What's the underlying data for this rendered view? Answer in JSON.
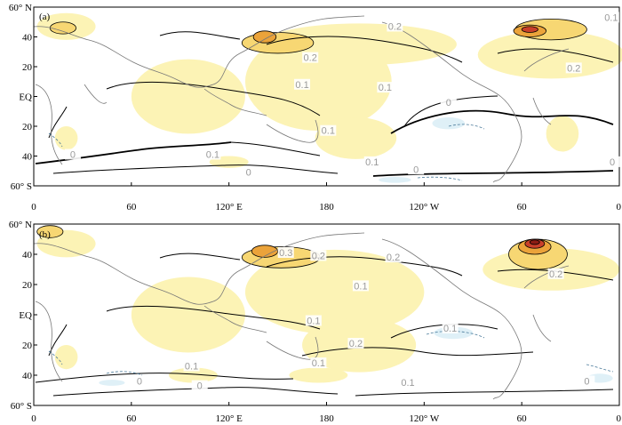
{
  "figure": {
    "colors": {
      "shade_light_blue": "#dff0f7",
      "shade_yellow_1": "#fcf3b5",
      "shade_yellow_2": "#f7d773",
      "shade_orange": "#eba33a",
      "shade_red": "#c9402a",
      "shade_dark_red": "#8c1c14",
      "contour_black": "#000000",
      "coastline_grey": "#777777",
      "label_grey": "#9a9a9a"
    },
    "x_ticks": [
      "0",
      "60",
      "120° E",
      "180",
      "120° W",
      "60",
      "0"
    ],
    "y_ticks": [
      "60° N",
      "40",
      "20",
      "EQ",
      "20",
      "40",
      "60° S"
    ],
    "panels": [
      {
        "id": "a",
        "label": "(a)",
        "contour_labels": [
          {
            "text": "0.2",
            "lon": 222,
            "lat": 46
          },
          {
            "text": "0.1",
            "lon": 355,
            "lat": 52
          },
          {
            "text": "0.2",
            "lon": 170,
            "lat": 25
          },
          {
            "text": "0.2",
            "lon": 332,
            "lat": 18
          },
          {
            "text": "0.1",
            "lon": 165,
            "lat": 7
          },
          {
            "text": "0.1",
            "lon": 216,
            "lat": 5
          },
          {
            "text": "0.1",
            "lon": 181,
            "lat": -24
          },
          {
            "text": "0.1",
            "lon": 110,
            "lat": -40
          },
          {
            "text": "0.1",
            "lon": 208,
            "lat": -45
          },
          {
            "text": "0",
            "lon": 235,
            "lat": -50
          },
          {
            "text": "0",
            "lon": 255,
            "lat": -5
          },
          {
            "text": "0",
            "lon": 356,
            "lat": -45
          },
          {
            "text": "0",
            "lon": 24,
            "lat": -40
          },
          {
            "text": "0",
            "lon": 132,
            "lat": -52
          }
        ],
        "shades": [
          {
            "level": "yellow_1",
            "lon": 95,
            "lat": 0,
            "rlon": 35,
            "rlat": 25
          },
          {
            "level": "yellow_1",
            "lon": 175,
            "lat": 10,
            "rlon": 45,
            "rlat": 33
          },
          {
            "level": "yellow_1",
            "lon": 200,
            "lat": 35,
            "rlon": 60,
            "rlat": 14
          },
          {
            "level": "yellow_1",
            "lon": 318,
            "lat": 28,
            "rlon": 45,
            "rlat": 16
          },
          {
            "level": "yellow_1",
            "lon": 198,
            "lat": -28,
            "rlon": 25,
            "rlat": 14
          },
          {
            "level": "yellow_1",
            "lon": 120,
            "lat": -44,
            "rlon": 12,
            "rlat": 4
          },
          {
            "level": "yellow_1",
            "lon": 20,
            "lat": 47,
            "rlon": 18,
            "rlat": 9
          },
          {
            "level": "yellow_1",
            "lon": 20,
            "lat": -28,
            "rlon": 7,
            "rlat": 8
          },
          {
            "level": "yellow_1",
            "lon": 325,
            "lat": -25,
            "rlon": 10,
            "rlat": 12
          },
          {
            "level": "yellow_2",
            "lon": 150,
            "lat": 36,
            "rlon": 22,
            "rlat": 7
          },
          {
            "level": "yellow_2",
            "lon": 318,
            "lat": 45,
            "rlon": 22,
            "rlat": 7
          },
          {
            "level": "yellow_2",
            "lon": 18,
            "lat": 46,
            "rlon": 8,
            "rlat": 4
          },
          {
            "level": "orange",
            "lon": 142,
            "lat": 40,
            "rlon": 7,
            "rlat": 4
          },
          {
            "level": "orange",
            "lon": 305,
            "lat": 44,
            "rlon": 10,
            "rlat": 4
          },
          {
            "level": "red",
            "lon": 305,
            "lat": 45,
            "rlon": 5,
            "rlat": 2
          }
        ],
        "light_blue": [
          {
            "lon": 255,
            "lat": -18,
            "rlon": 10,
            "rlat": 4
          },
          {
            "lon": 222,
            "lat": -56,
            "rlon": 10,
            "rlat": 2
          }
        ]
      },
      {
        "id": "b",
        "label": "(b)",
        "contour_labels": [
          {
            "text": "0.3",
            "lon": 155,
            "lat": 40
          },
          {
            "text": "0.2",
            "lon": 175,
            "lat": 38
          },
          {
            "text": "0.2",
            "lon": 221,
            "lat": 37
          },
          {
            "text": "0.2",
            "lon": 321,
            "lat": 26
          },
          {
            "text": "0.1",
            "lon": 201,
            "lat": 18
          },
          {
            "text": "0.1",
            "lon": 172,
            "lat": -5
          },
          {
            "text": "0.1",
            "lon": 256,
            "lat": -10
          },
          {
            "text": "0.2",
            "lon": 198,
            "lat": -20
          },
          {
            "text": "0.1",
            "lon": 175,
            "lat": -33
          },
          {
            "text": "0.1",
            "lon": 97,
            "lat": -35
          },
          {
            "text": "0.1",
            "lon": 230,
            "lat": -46
          },
          {
            "text": "0",
            "lon": 65,
            "lat": -45
          },
          {
            "text": "0",
            "lon": 102,
            "lat": -48
          },
          {
            "text": "0",
            "lon": 340,
            "lat": -45
          }
        ],
        "shades": [
          {
            "level": "yellow_1",
            "lon": 95,
            "lat": 0,
            "rlon": 35,
            "rlat": 25
          },
          {
            "level": "yellow_1",
            "lon": 185,
            "lat": 15,
            "rlon": 55,
            "rlat": 28
          },
          {
            "level": "yellow_1",
            "lon": 200,
            "lat": -20,
            "rlon": 35,
            "rlat": 18
          },
          {
            "level": "yellow_1",
            "lon": 318,
            "lat": 30,
            "rlon": 42,
            "rlat": 14
          },
          {
            "level": "yellow_1",
            "lon": 98,
            "lat": -40,
            "rlon": 15,
            "rlat": 5
          },
          {
            "level": "yellow_1",
            "lon": 175,
            "lat": -40,
            "rlon": 18,
            "rlat": 5
          },
          {
            "level": "yellow_1",
            "lon": 20,
            "lat": 47,
            "rlon": 18,
            "rlat": 9
          },
          {
            "level": "yellow_1",
            "lon": 20,
            "lat": -28,
            "rlon": 7,
            "rlat": 8
          },
          {
            "level": "yellow_2",
            "lon": 152,
            "lat": 38,
            "rlon": 24,
            "rlat": 7
          },
          {
            "level": "yellow_2",
            "lon": 310,
            "lat": 40,
            "rlon": 18,
            "rlat": 10
          },
          {
            "level": "yellow_2",
            "lon": 10,
            "lat": 55,
            "rlon": 8,
            "rlat": 4
          },
          {
            "level": "orange",
            "lon": 142,
            "lat": 42,
            "rlon": 8,
            "rlat": 4
          },
          {
            "level": "orange",
            "lon": 308,
            "lat": 45,
            "rlon": 10,
            "rlat": 5
          },
          {
            "level": "red",
            "lon": 308,
            "lat": 47,
            "rlon": 6,
            "rlat": 3
          },
          {
            "level": "dark_red",
            "lon": 308,
            "lat": 48,
            "rlon": 3,
            "rlat": 1.5
          }
        ],
        "light_blue": [
          {
            "lon": 258,
            "lat": -12,
            "rlon": 12,
            "rlat": 4
          },
          {
            "lon": 48,
            "lat": -45,
            "rlon": 8,
            "rlat": 2
          },
          {
            "lon": 348,
            "lat": -42,
            "rlon": 8,
            "rlat": 3
          }
        ]
      }
    ]
  }
}
